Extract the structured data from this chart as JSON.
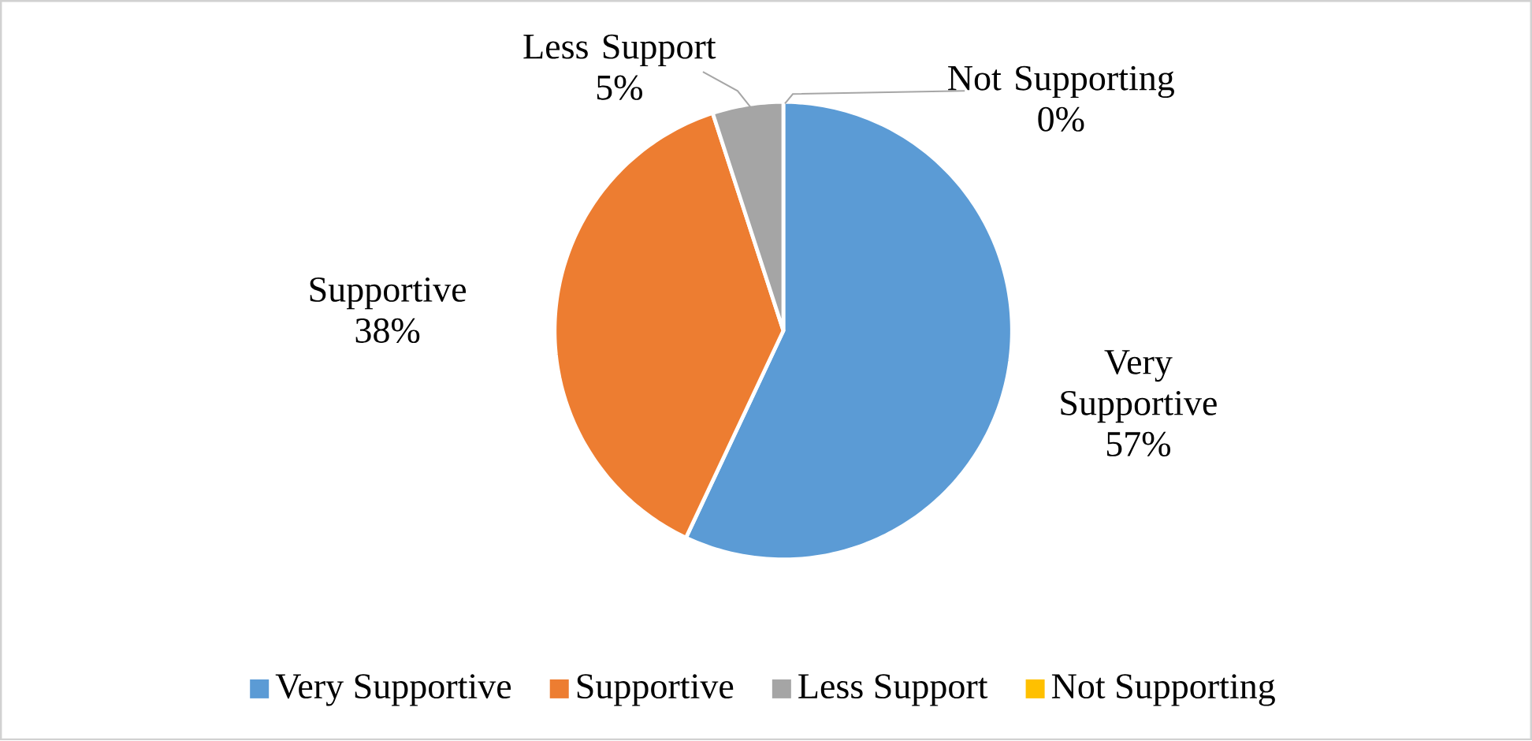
{
  "chart_data": {
    "type": "pie",
    "categories": [
      "Very Supportive",
      "Supportive",
      "Less Support",
      "Not Supporting"
    ],
    "values": [
      57,
      38,
      5,
      0
    ],
    "value_labels": [
      "57%",
      "38%",
      "5%",
      "0%"
    ],
    "colors": [
      "#5b9bd5",
      "#ed7d31",
      "#a5a5a5",
      "#ffc000"
    ],
    "legend": "bottom"
  }
}
